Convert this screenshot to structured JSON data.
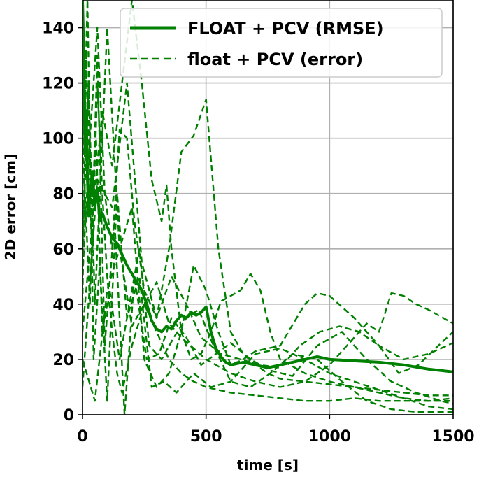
{
  "chart_data": {
    "type": "line",
    "xlabel": "time [s]",
    "ylabel": "2D error [cm]",
    "xlim": [
      0,
      1500
    ],
    "ylim": [
      0,
      150
    ],
    "xticks": [
      0,
      500,
      1000,
      1500
    ],
    "yticks": [
      0,
      20,
      40,
      60,
      80,
      100,
      120,
      140
    ],
    "grid": true,
    "legend_position": "top-right",
    "color": "#008000",
    "legend": [
      {
        "label": "FLOAT + PCV (RMSE)",
        "style": "solid"
      },
      {
        "label": "float + PCV (error)",
        "style": "dashed"
      }
    ],
    "series": [
      {
        "name": "FLOAT + PCV (RMSE)",
        "style": "solid",
        "x": [
          0,
          5,
          10,
          15,
          20,
          25,
          30,
          40,
          50,
          60,
          70,
          80,
          100,
          120,
          140,
          160,
          180,
          200,
          220,
          240,
          260,
          280,
          300,
          320,
          340,
          360,
          380,
          400,
          420,
          440,
          460,
          480,
          500,
          520,
          540,
          560,
          580,
          600,
          650,
          700,
          750,
          800,
          850,
          900,
          950,
          1000,
          1100,
          1200,
          1300,
          1400,
          1500
        ],
        "y": [
          150,
          130,
          95,
          110,
          85,
          72,
          80,
          88,
          75,
          82,
          70,
          73,
          68,
          64,
          62,
          58,
          54,
          51,
          48,
          45,
          40,
          34,
          31,
          30,
          32,
          31,
          34,
          36,
          35,
          37,
          36,
          37,
          39,
          30,
          24,
          21,
          19,
          18,
          19,
          18,
          17,
          18,
          19,
          20,
          21,
          20,
          19.5,
          19,
          18,
          16.5,
          15.5
        ]
      },
      {
        "x": [
          0,
          20,
          40,
          60,
          80,
          100,
          120,
          140,
          160,
          200,
          250,
          300,
          350,
          400,
          450,
          500,
          600,
          700,
          800,
          900,
          1000,
          1100,
          1200,
          1300,
          1400,
          1500
        ],
        "y": [
          140,
          90,
          60,
          120,
          80,
          50,
          30,
          15,
          8,
          25,
          40,
          30,
          20,
          15,
          12,
          10,
          8,
          7,
          6,
          5,
          5,
          6,
          5,
          5,
          5,
          6
        ]
      },
      {
        "x": [
          0,
          30,
          60,
          90,
          120,
          150,
          180,
          210,
          250,
          300,
          350,
          400,
          450,
          500,
          550,
          600,
          650,
          700,
          750,
          800,
          900,
          1000,
          1100,
          1200,
          1300,
          1400,
          1500
        ],
        "y": [
          50,
          100,
          140,
          80,
          60,
          103,
          100,
          70,
          45,
          35,
          60,
          95,
          101,
          114,
          60,
          30,
          22,
          18,
          15,
          13,
          12,
          11,
          10,
          9,
          8,
          7,
          7
        ]
      },
      {
        "x": [
          0,
          40,
          80,
          120,
          160,
          200,
          240,
          280,
          320,
          340,
          360,
          400,
          440,
          480,
          520,
          560,
          600,
          640,
          680,
          720,
          760,
          800,
          900,
          1000,
          1100,
          1200,
          1300,
          1400,
          1500
        ],
        "y": [
          30,
          70,
          110,
          90,
          120,
          150,
          120,
          85,
          70,
          83,
          60,
          30,
          20,
          22,
          30,
          41,
          43,
          45,
          51,
          45,
          30,
          20,
          15,
          12,
          10,
          8,
          6,
          5,
          5
        ]
      },
      {
        "x": [
          0,
          25,
          50,
          75,
          100,
          150,
          200,
          250,
          300,
          350,
          400,
          450,
          500,
          550,
          600,
          650,
          700,
          800,
          900,
          950,
          1000,
          1100,
          1200,
          1300,
          1400,
          1500
        ],
        "y": [
          60,
          120,
          40,
          90,
          140,
          60,
          75,
          20,
          10,
          15,
          30,
          54,
          45,
          30,
          18,
          20,
          23,
          25,
          40,
          44,
          43,
          35,
          25,
          20,
          22,
          26
        ]
      },
      {
        "x": [
          0,
          50,
          100,
          150,
          200,
          250,
          300,
          350,
          400,
          500,
          600,
          700,
          800,
          900,
          1000,
          1100,
          1150,
          1200,
          1250,
          1300,
          1350,
          1400,
          1500
        ],
        "y": [
          20,
          5,
          45,
          60,
          32,
          40,
          48,
          33,
          28,
          20,
          15,
          12,
          10,
          12,
          18,
          28,
          33,
          30,
          44,
          43,
          40,
          38,
          33
        ]
      },
      {
        "x": [
          0,
          30,
          60,
          90,
          130,
          170,
          210,
          260,
          310,
          360,
          420,
          480,
          540,
          600,
          680,
          760,
          850,
          950,
          1050,
          1150,
          1250,
          1350,
          1450,
          1500
        ],
        "y": [
          100,
          40,
          130,
          25,
          70,
          0,
          50,
          20,
          22,
          35,
          28,
          18,
          22,
          26,
          20,
          16,
          14,
          25,
          30,
          20,
          12,
          8,
          5,
          4
        ]
      },
      {
        "x": [
          0,
          20,
          45,
          70,
          100,
          140,
          180,
          230,
          280,
          330,
          380,
          450,
          520,
          600,
          700,
          800,
          900,
          1000,
          1100,
          1200,
          1300,
          1400,
          1500
        ],
        "y": [
          80,
          150,
          20,
          55,
          5,
          80,
          35,
          50,
          10,
          12,
          8,
          15,
          10,
          12,
          22,
          24,
          20,
          15,
          12,
          9,
          6,
          3,
          2
        ]
      },
      {
        "x": [
          0,
          15,
          35,
          55,
          80,
          110,
          150,
          190,
          230,
          270,
          320,
          370,
          420,
          470,
          530,
          600,
          680,
          760,
          850,
          950,
          1050,
          1150,
          1250,
          1350,
          1450,
          1500
        ],
        "y": [
          40,
          130,
          70,
          100,
          30,
          45,
          20,
          40,
          60,
          25,
          20,
          28,
          35,
          38,
          25,
          12,
          10,
          15,
          22,
          20,
          12,
          5,
          2,
          1,
          1,
          1
        ]
      },
      {
        "x": [
          0,
          60,
          120,
          180,
          240,
          300,
          360,
          420,
          480,
          560,
          640,
          720,
          800,
          880,
          960,
          1040,
          1120,
          1200,
          1280,
          1360,
          1440,
          1500
        ],
        "y": [
          10,
          85,
          75,
          120,
          55,
          35,
          50,
          40,
          28,
          22,
          20,
          18,
          17,
          25,
          30,
          32,
          30,
          25,
          15,
          18,
          25,
          30
        ]
      }
    ]
  }
}
